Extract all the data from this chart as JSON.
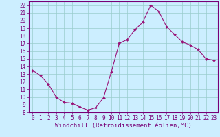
{
  "x": [
    0,
    1,
    2,
    3,
    4,
    5,
    6,
    7,
    8,
    9,
    10,
    11,
    12,
    13,
    14,
    15,
    16,
    17,
    18,
    19,
    20,
    21,
    22,
    23
  ],
  "y": [
    13.5,
    12.8,
    11.7,
    10.0,
    9.3,
    9.2,
    8.7,
    8.3,
    8.6,
    9.9,
    13.3,
    17.0,
    17.5,
    18.8,
    19.8,
    22.0,
    21.2,
    19.2,
    18.2,
    17.2,
    16.8,
    16.2,
    15.0,
    14.8
  ],
  "line_color": "#991177",
  "marker": "D",
  "marker_size": 2,
  "xlim": [
    -0.5,
    23.5
  ],
  "ylim": [
    8,
    22.5
  ],
  "yticks": [
    8,
    9,
    10,
    11,
    12,
    13,
    14,
    15,
    16,
    17,
    18,
    19,
    20,
    21,
    22
  ],
  "xticks": [
    0,
    1,
    2,
    3,
    4,
    5,
    6,
    7,
    8,
    9,
    10,
    11,
    12,
    13,
    14,
    15,
    16,
    17,
    18,
    19,
    20,
    21,
    22,
    23
  ],
  "xlabel": "Windchill (Refroidissement éolien,°C)",
  "bg_color": "#cceeff",
  "grid_color": "#99cccc",
  "tick_label_color": "#770077",
  "axis_color": "#770077",
  "xlabel_color": "#770077",
  "tick_fontsize": 5.5,
  "xlabel_fontsize": 6.5
}
